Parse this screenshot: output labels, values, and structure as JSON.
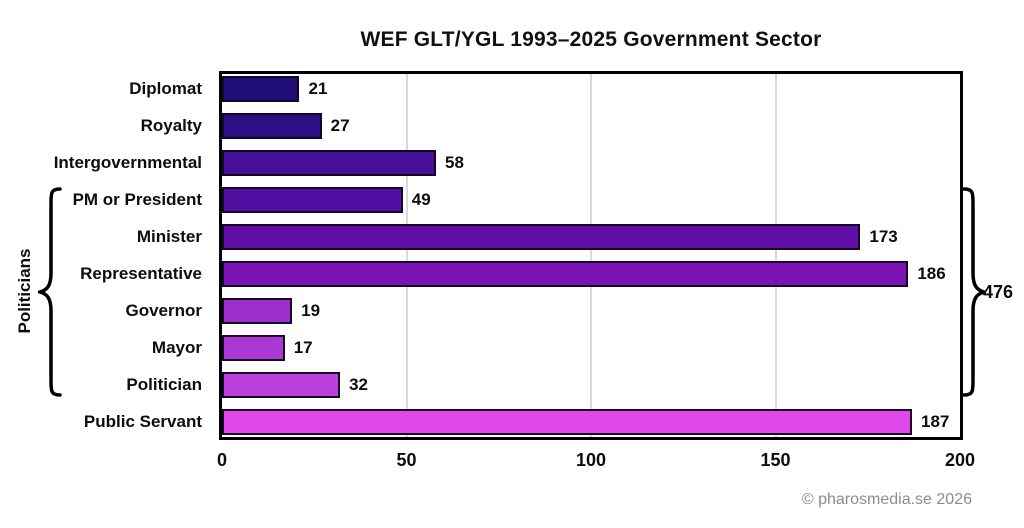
{
  "title": "WEF GLT/YGL 1993–2025 Government Sector",
  "chart_data": {
    "type": "bar",
    "orientation": "horizontal",
    "title": "WEF GLT/YGL 1993–2025 Government Sector",
    "categories": [
      "Diplomat",
      "Royalty",
      "Intergovernmental",
      "PM or President",
      "Minister",
      "Representative",
      "Governor",
      "Mayor",
      "Politician",
      "Public Servant"
    ],
    "values": [
      21,
      27,
      58,
      49,
      173,
      186,
      19,
      17,
      32,
      187
    ],
    "bar_colors": [
      "#1f0c76",
      "#2d0f85",
      "#460f97",
      "#500fa0",
      "#5f0fa6",
      "#7a12b4",
      "#9c2ecb",
      "#aa38d3",
      "#bc40dc",
      "#e247e9"
    ],
    "xlim": [
      0,
      200
    ],
    "xticks": [
      0,
      50,
      100,
      150,
      200
    ],
    "grid": "vertical",
    "gridline_color": "#d9d9d9",
    "group_annotation": {
      "label": "Politicians",
      "from_category": "PM or President",
      "to_category": "Politician",
      "from_index": 3,
      "to_index": 8,
      "total": "476"
    }
  },
  "footer": {
    "copyright": "© pharosmedia.se 2026"
  }
}
